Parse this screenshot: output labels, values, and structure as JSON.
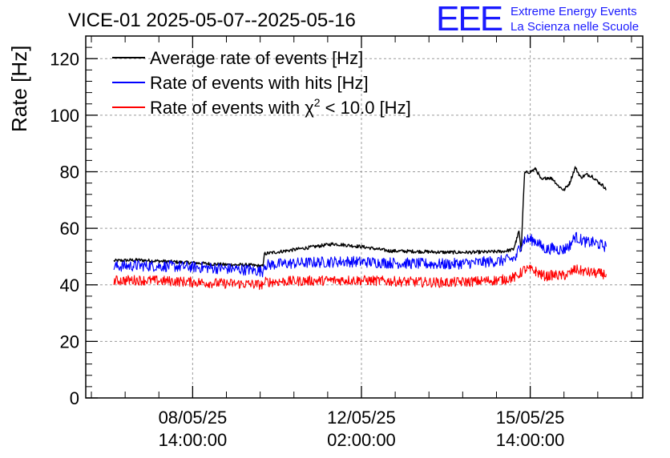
{
  "logo": {
    "letters": "EEE",
    "line1": "Extreme Energy Events",
    "line2": "La Scienza nelle Scuole",
    "color": "#1a1aff"
  },
  "chart_data": {
    "type": "line",
    "title": "VICE-01 2025-05-07--2025-05-16",
    "ylabel": "Rate [Hz]",
    "xlabel": "",
    "ylim": [
      0,
      128
    ],
    "yticks": [
      0,
      20,
      40,
      60,
      80,
      100,
      120
    ],
    "xlim_hours": [
      -38,
      160
    ],
    "xticks": [
      {
        "hours": 0,
        "date": "08/05/25",
        "time": "14:00:00"
      },
      {
        "hours": 60,
        "date": "12/05/25",
        "time": "02:00:00"
      },
      {
        "hours": 120,
        "date": "15/05/25",
        "time": "14:00:00"
      }
    ],
    "grid": true,
    "legend_position": "top-left",
    "series": [
      {
        "name": "Average rate of events [Hz]",
        "color": "#000000",
        "noise": 0.6,
        "points": [
          [
            -28,
            48.5
          ],
          [
            -20,
            48.8
          ],
          [
            -10,
            48.3
          ],
          [
            0,
            47.8
          ],
          [
            10,
            47.2
          ],
          [
            20,
            47.0
          ],
          [
            25,
            46.6
          ],
          [
            25.5,
            51.0
          ],
          [
            33,
            52.0
          ],
          [
            40,
            53.0
          ],
          [
            50,
            54.5
          ],
          [
            55,
            54.0
          ],
          [
            60,
            53.5
          ],
          [
            70,
            52.0
          ],
          [
            80,
            51.8
          ],
          [
            90,
            51.5
          ],
          [
            100,
            51.5
          ],
          [
            110,
            51.8
          ],
          [
            114,
            52.5
          ],
          [
            115,
            55.5
          ],
          [
            116,
            59.0
          ],
          [
            116.8,
            52.0
          ],
          [
            117.5,
            69.0
          ],
          [
            118,
            79.5
          ],
          [
            120,
            80.0
          ],
          [
            122,
            81.0
          ],
          [
            124,
            77.0
          ],
          [
            126,
            78.0
          ],
          [
            128,
            77.5
          ],
          [
            130,
            75.0
          ],
          [
            132,
            73.5
          ],
          [
            134,
            76.0
          ],
          [
            136,
            81.5
          ],
          [
            138,
            78.0
          ],
          [
            140,
            79.0
          ],
          [
            142,
            78.5
          ],
          [
            144,
            76.5
          ],
          [
            146,
            75.0
          ],
          [
            147,
            73.5
          ]
        ]
      },
      {
        "name": "Rate of events with hits [Hz]",
        "color": "#0000ff",
        "noise": 2.0,
        "points": [
          [
            -28,
            46.5
          ],
          [
            -20,
            46.8
          ],
          [
            -10,
            46.6
          ],
          [
            0,
            46.3
          ],
          [
            10,
            45.8
          ],
          [
            20,
            45.3
          ],
          [
            25,
            44.8
          ],
          [
            25.5,
            47.0
          ],
          [
            33,
            47.5
          ],
          [
            45,
            48.0
          ],
          [
            55,
            48.3
          ],
          [
            60,
            48.1
          ],
          [
            70,
            47.8
          ],
          [
            80,
            47.5
          ],
          [
            90,
            47.3
          ],
          [
            100,
            47.8
          ],
          [
            110,
            48.5
          ],
          [
            115,
            49.5
          ],
          [
            116,
            53.0
          ],
          [
            118,
            56.0
          ],
          [
            120,
            56.0
          ],
          [
            122,
            55.5
          ],
          [
            124,
            53.5
          ],
          [
            126,
            52.5
          ],
          [
            128,
            53.0
          ],
          [
            130,
            52.5
          ],
          [
            132,
            52.5
          ],
          [
            134,
            54.0
          ],
          [
            136,
            57.0
          ],
          [
            138,
            56.0
          ],
          [
            140,
            55.0
          ],
          [
            142,
            55.0
          ],
          [
            144,
            54.5
          ],
          [
            147,
            53.5
          ]
        ]
      },
      {
        "name": "Rate of events with χ² < 10.0 [Hz]",
        "color": "#ff0000",
        "noise": 1.8,
        "points": [
          [
            -28,
            41.5
          ],
          [
            -20,
            41.7
          ],
          [
            -10,
            41.4
          ],
          [
            0,
            41.0
          ],
          [
            10,
            40.5
          ],
          [
            20,
            40.3
          ],
          [
            25,
            40.0
          ],
          [
            25.5,
            41.0
          ],
          [
            35,
            41.3
          ],
          [
            45,
            41.5
          ],
          [
            55,
            41.7
          ],
          [
            60,
            41.6
          ],
          [
            70,
            41.3
          ],
          [
            80,
            41.0
          ],
          [
            90,
            40.8
          ],
          [
            100,
            41.2
          ],
          [
            110,
            41.8
          ],
          [
            115,
            42.8
          ],
          [
            118,
            45.5
          ],
          [
            120,
            45.3
          ],
          [
            122,
            44.8
          ],
          [
            124,
            43.5
          ],
          [
            126,
            43.0
          ],
          [
            128,
            43.5
          ],
          [
            130,
            43.3
          ],
          [
            132,
            43.3
          ],
          [
            134,
            44.0
          ],
          [
            136,
            45.5
          ],
          [
            138,
            45.0
          ],
          [
            140,
            44.5
          ],
          [
            142,
            44.3
          ],
          [
            144,
            44.0
          ],
          [
            147,
            43.8
          ]
        ]
      }
    ],
    "legend_labels": {
      "s0": "Average rate of events [Hz]",
      "s1": "Rate of events with hits [Hz]",
      "s2_prefix": "Rate of events with χ",
      "s2_sup": "2",
      "s2_suffix": " < 10.0 [Hz]"
    }
  }
}
